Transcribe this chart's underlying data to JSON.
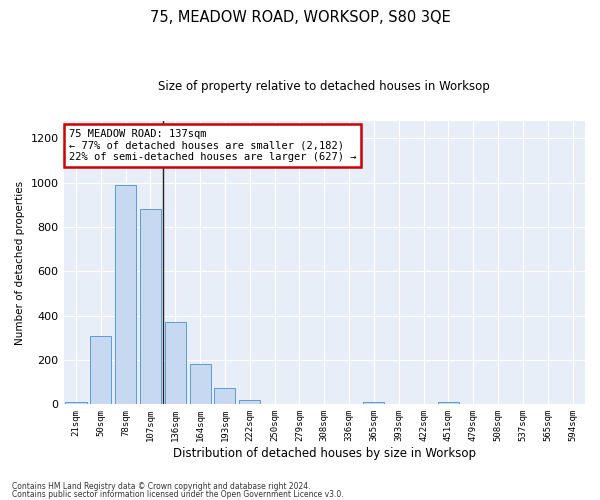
{
  "title": "75, MEADOW ROAD, WORKSOP, S80 3QE",
  "subtitle": "Size of property relative to detached houses in Worksop",
  "xlabel": "Distribution of detached houses by size in Worksop",
  "ylabel": "Number of detached properties",
  "bar_labels": [
    "21sqm",
    "50sqm",
    "78sqm",
    "107sqm",
    "136sqm",
    "164sqm",
    "193sqm",
    "222sqm",
    "250sqm",
    "279sqm",
    "308sqm",
    "336sqm",
    "365sqm",
    "393sqm",
    "422sqm",
    "451sqm",
    "479sqm",
    "508sqm",
    "537sqm",
    "565sqm",
    "594sqm"
  ],
  "bar_values": [
    10,
    310,
    990,
    880,
    370,
    180,
    75,
    20,
    0,
    0,
    0,
    0,
    10,
    0,
    0,
    10,
    0,
    0,
    0,
    0,
    0
  ],
  "bar_color": "#c6d9f0",
  "bar_edge_color": "#5b9bd5",
  "property_line_index": 4,
  "annotation_text": "75 MEADOW ROAD: 137sqm\n← 77% of detached houses are smaller (2,182)\n22% of semi-detached houses are larger (627) →",
  "annotation_box_color": "#ffffff",
  "annotation_box_edge_color": "#cc0000",
  "ylim": [
    0,
    1280
  ],
  "yticks": [
    0,
    200,
    400,
    600,
    800,
    1000,
    1200
  ],
  "background_color": "#e8eef8",
  "grid_color": "#ffffff",
  "fig_background": "#ffffff",
  "footer_line1": "Contains HM Land Registry data © Crown copyright and database right 2024.",
  "footer_line2": "Contains public sector information licensed under the Open Government Licence v3.0."
}
